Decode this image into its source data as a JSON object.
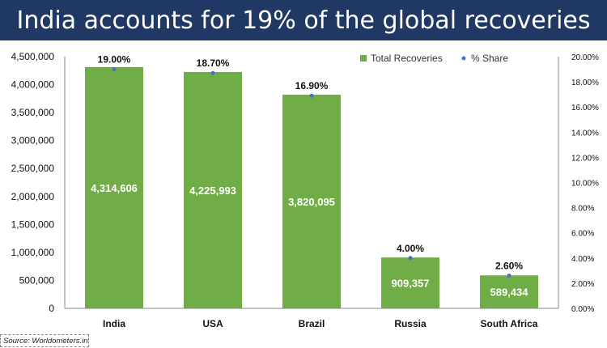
{
  "title": "India accounts for 19% of the global recoveries",
  "source": "Source: Worldometers.info",
  "chart_data": {
    "type": "bar",
    "categories": [
      "India",
      "USA",
      "Brazil",
      "Russia",
      "South Africa"
    ],
    "series": [
      {
        "name": "Total Recoveries",
        "values": [
          4314606,
          4225993,
          3820095,
          909357,
          589434
        ],
        "labels": [
          "4,314,606",
          "4,225,993",
          "3,820,095",
          "909,357",
          "589,434"
        ],
        "color": "#70ad47",
        "axis": "left"
      },
      {
        "name": "% Share",
        "values": [
          19.0,
          18.7,
          16.9,
          4.0,
          2.6
        ],
        "labels": [
          "19.00%",
          "18.70%",
          "16.90%",
          "4.00%",
          "2.60%"
        ],
        "color": "#4472c4",
        "axis": "right",
        "marker": "dot"
      }
    ],
    "ylim": [
      0,
      4500000
    ],
    "y_ticks": [
      "0",
      "500,000",
      "1,000,000",
      "1,500,000",
      "2,000,000",
      "2,500,000",
      "3,000,000",
      "3,500,000",
      "4,000,000",
      "4,500,000"
    ],
    "y2lim": [
      0,
      20
    ],
    "y2_ticks": [
      "0.00%",
      "2.00%",
      "4.00%",
      "6.00%",
      "8.00%",
      "10.00%",
      "12.00%",
      "14.00%",
      "16.00%",
      "18.00%",
      "20.00%"
    ],
    "legend_position": "top-right",
    "grid": false
  }
}
